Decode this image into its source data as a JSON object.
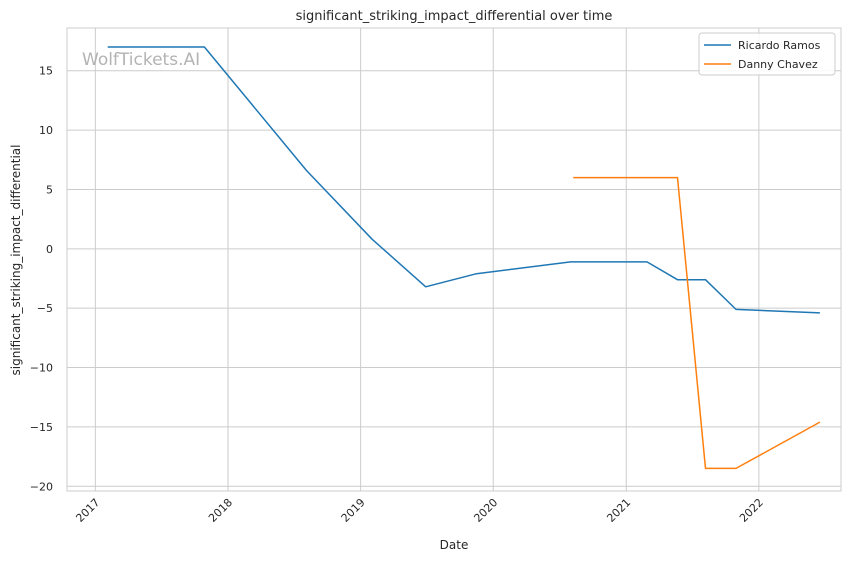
{
  "chart_data": {
    "type": "line",
    "title": "significant_striking_impact_differential over time",
    "xlabel": "Date",
    "ylabel": "significant_striking_impact_differential",
    "watermark": "WolfTickets.AI",
    "grid": true,
    "legend_position": "top-right",
    "x_ticks": [
      "2017",
      "2018",
      "2019",
      "2020",
      "2021",
      "2022"
    ],
    "y_ticks": [
      "15",
      "10",
      "5",
      "0",
      "−5",
      "−10",
      "−15",
      "−20"
    ],
    "xlim": [
      "2016-10-15",
      "2022-08-15"
    ],
    "ylim": [
      -20.4,
      18.6
    ],
    "series": [
      {
        "name": "Ricardo Ramos",
        "color": "#1f77b4",
        "points": [
          [
            "2017-02-04",
            17.0
          ],
          [
            "2017-10-28",
            17.0
          ],
          [
            "2018-08-05",
            6.6
          ],
          [
            "2019-02-02",
            0.8
          ],
          [
            "2019-06-29",
            -3.2
          ],
          [
            "2019-11-16",
            -2.1
          ],
          [
            "2020-08-01",
            -1.1
          ],
          [
            "2021-02-27",
            -1.1
          ],
          [
            "2021-05-22",
            -2.6
          ],
          [
            "2021-08-07",
            -2.6
          ],
          [
            "2021-10-30",
            -5.1
          ],
          [
            "2022-06-18",
            -5.4
          ]
        ]
      },
      {
        "name": "Danny Chavez",
        "color": "#ff7f0e",
        "points": [
          [
            "2020-08-08",
            6.0
          ],
          [
            "2021-05-22",
            6.0
          ],
          [
            "2021-08-07",
            -18.5
          ],
          [
            "2021-10-30",
            -18.5
          ],
          [
            "2022-06-18",
            -14.6
          ]
        ]
      }
    ]
  }
}
